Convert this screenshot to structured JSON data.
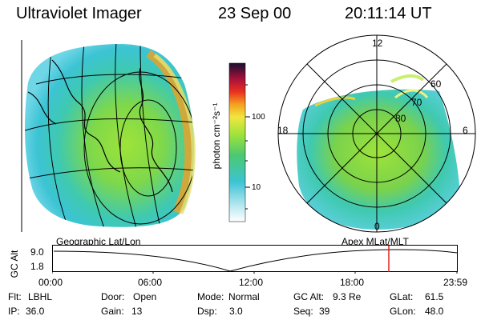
{
  "header": {
    "title": "Ultraviolet Imager",
    "date": "23 Sep 00",
    "time": "20:11:14 UT"
  },
  "colorbar": {
    "unit_label": "photon cm⁻²s⁻¹",
    "ticks": [
      "100",
      "10"
    ]
  },
  "left_panel": {
    "caption": "Geographic Lat/Lon"
  },
  "right_panel": {
    "caption": "Apex MLat/MLT",
    "mlt_labels": [
      "12",
      "18",
      "6",
      "0"
    ],
    "lat_labels": [
      "60",
      "70",
      "80"
    ]
  },
  "altitude_plot": {
    "y_label": "GC Alt",
    "y_ticks": [
      "9.0",
      "1.8"
    ],
    "x_ticks": [
      "00:00",
      "06:00",
      "12:00",
      "18:00",
      "23:59"
    ]
  },
  "info": {
    "row1": [
      {
        "key": "Flt:",
        "value": "LBHL"
      },
      {
        "key": "Door:",
        "value": "Open"
      },
      {
        "key": "Mode:",
        "value": "Normal"
      },
      {
        "key": "GC Alt:",
        "value": "9.3 Re"
      },
      {
        "key": "GLat:",
        "value": "61.5"
      }
    ],
    "row2": [
      {
        "key": "IP:",
        "value": "36.0"
      },
      {
        "key": "Gain:",
        "value": "13"
      },
      {
        "key": "Dsp:",
        "value": "3.0"
      },
      {
        "key": "Seq:",
        "value": "39"
      },
      {
        "key": "GLon:",
        "value": "48.0"
      }
    ]
  },
  "colors": {
    "marker": "#e0201a",
    "grid": "#000000"
  }
}
